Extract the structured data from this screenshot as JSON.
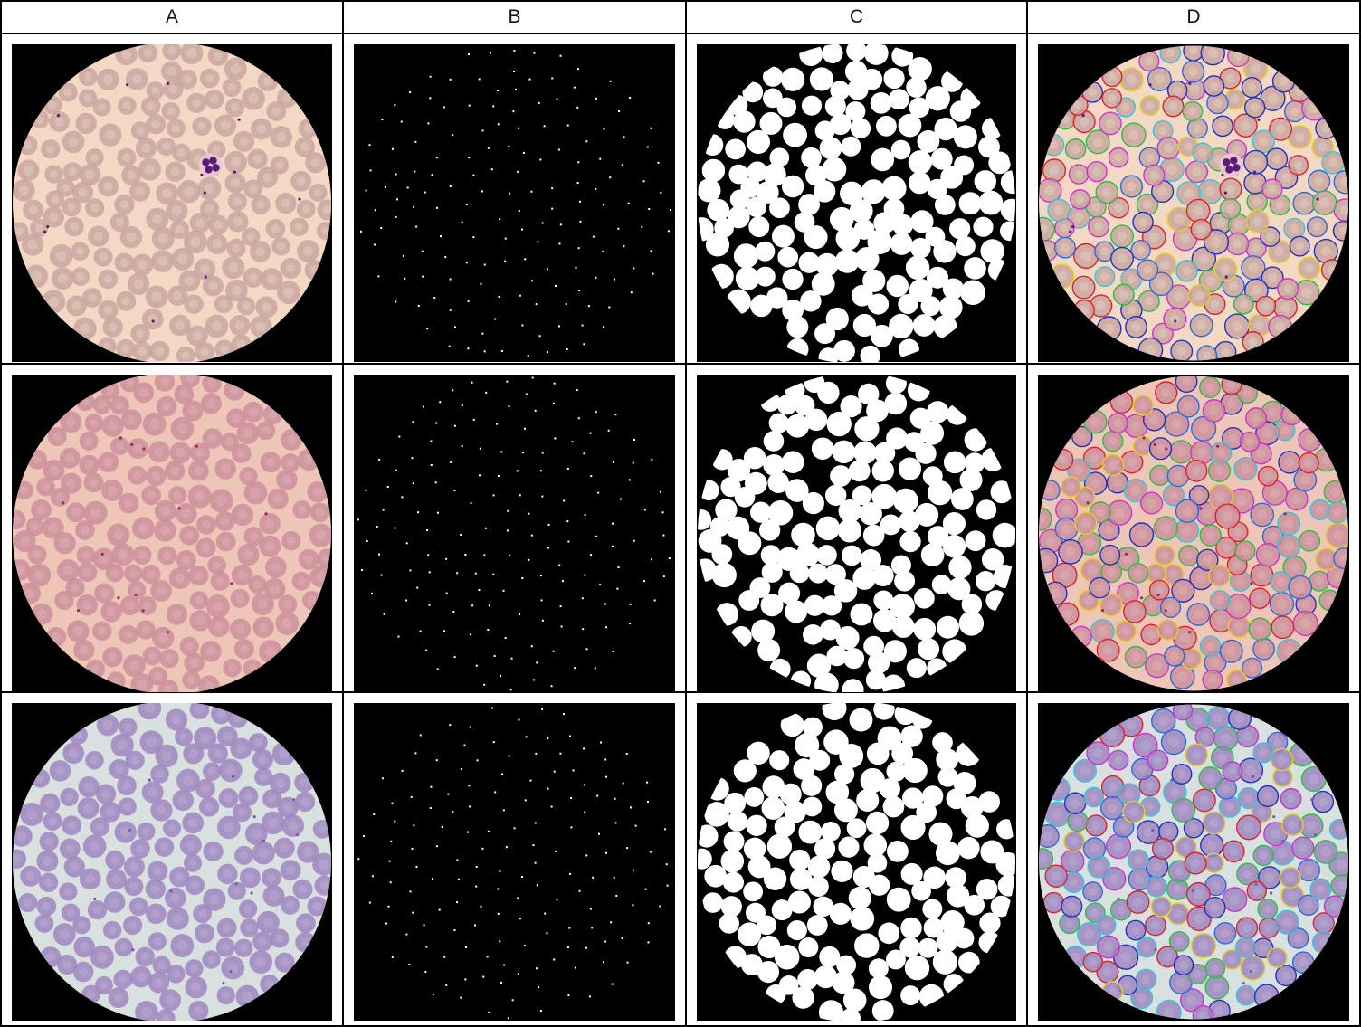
{
  "columns": [
    {
      "id": "A",
      "label": "A",
      "kind": "micrograph"
    },
    {
      "id": "B",
      "label": "B",
      "kind": "centroids"
    },
    {
      "id": "C",
      "label": "C",
      "kind": "mask"
    },
    {
      "id": "D",
      "label": "D",
      "kind": "overlay"
    }
  ],
  "rows": [
    {
      "id": "row-1",
      "background": "#f3d9c4",
      "cell_fill": "#c9a4a0",
      "cell_center": "#d9c0b6",
      "has_wbc": true,
      "stain": "#5a1a7a"
    },
    {
      "id": "row-2",
      "background": "#eec6b8",
      "cell_fill": "#cc8f9a",
      "cell_center": "#d8a5ad",
      "has_wbc": false,
      "stain": "#9a2a5a"
    },
    {
      "id": "row-3",
      "background": "#d8e0e0",
      "cell_fill": "#9f86c0",
      "cell_center": "#b3a0cc",
      "has_wbc": false,
      "stain": "#7a5aa0"
    }
  ],
  "overlay_outline_colors": [
    "#e0202a",
    "#2a6ae0",
    "#28c040",
    "#e8d020",
    "#30c8d8",
    "#2030c0",
    "#d030d0"
  ],
  "mask_color": "#ffffff",
  "centroid_color": "#ffffff",
  "panel_background": "#000000"
}
